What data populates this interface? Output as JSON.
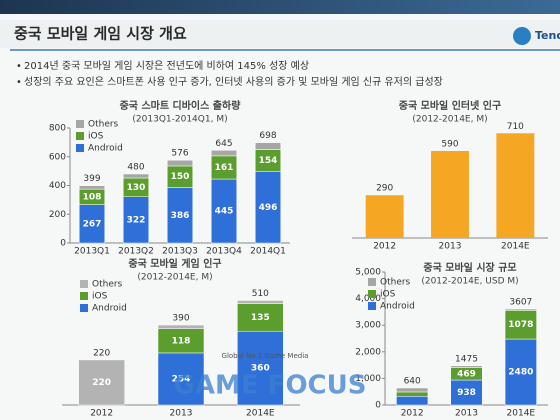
{
  "slide": {
    "title": "중국 모바일 게임 시장 개요",
    "logo": "Tencent Games",
    "bullets": [
      "2014년 중국 모바일 게임 시장은 전년도에 비하여 145% 성장 예상",
      "성장의 주요 요인은 스마트폰 사용 인구 증가, 인터넷 사용의 증가 및 모바일 게임 신규 유저의 급성장"
    ]
  },
  "watermark": {
    "tagline": "Global No.1 Game Media",
    "brand": "GAME FOCUS"
  },
  "chart_data": [
    {
      "type": "stacked-bar",
      "title": "중국 스마트 디바이스 출하량",
      "subtitle": "(2013Q1-2014Q1, M)",
      "categories": [
        "2013Q1",
        "2013Q2",
        "2013Q3",
        "2013Q4",
        "2014Q1"
      ],
      "series": [
        {
          "name": "Others",
          "color": "#a6a6a6",
          "values": [
            24,
            28,
            40,
            39,
            48
          ]
        },
        {
          "name": "iOS",
          "color": "#5b9e2e",
          "values": [
            108,
            130,
            150,
            161,
            154
          ]
        },
        {
          "name": "Android",
          "color": "#2f6fd8",
          "values": [
            267,
            322,
            386,
            445,
            496
          ]
        }
      ],
      "totals": [
        399,
        480,
        576,
        645,
        698
      ],
      "ylim": [
        0,
        800
      ],
      "yticks": [
        0,
        200,
        400,
        600,
        800
      ],
      "legend": "upper left"
    },
    {
      "type": "bar",
      "title": "중국 모바일 인터넷 인구",
      "subtitle": "(2012-2014E, M)",
      "categories": [
        "2012",
        "2013",
        "2014E"
      ],
      "values": [
        290,
        590,
        710
      ],
      "color": "#f5a623",
      "ylim": [
        0,
        800
      ]
    },
    {
      "type": "stacked-bar",
      "title": "중국 모바일 게임 인구",
      "subtitle": "(2012-2014E, M)",
      "categories": [
        "2012",
        "2013",
        "2014E"
      ],
      "series": [
        {
          "name": "Others",
          "color": "#b3b3b3",
          "values": [
            220,
            18,
            15
          ]
        },
        {
          "name": "iOS",
          "color": "#5b9e2e",
          "values": [
            null,
            118,
            135
          ]
        },
        {
          "name": "Android",
          "color": "#2f6fd8",
          "values": [
            null,
            254,
            360
          ]
        }
      ],
      "totals": [
        220,
        390,
        510
      ],
      "ylim": [
        0,
        600
      ],
      "legend": "upper left"
    },
    {
      "type": "stacked-bar",
      "title": "중국 모바일 시장 규모",
      "subtitle": "(2012-2014E, USD M)",
      "categories": [
        "2012",
        "2013",
        "2014E"
      ],
      "series": [
        {
          "name": "Others",
          "color": "#a6a6a6",
          "values": [
            150,
            68,
            49
          ]
        },
        {
          "name": "iOS",
          "color": "#5b9e2e",
          "values": [
            163,
            469,
            1078
          ]
        },
        {
          "name": "Android",
          "color": "#2f6fd8",
          "values": [
            327,
            938,
            2480
          ]
        }
      ],
      "totals": [
        640,
        1475,
        3607
      ],
      "ylim": [
        0,
        5000
      ],
      "yticks": [
        0,
        {
          "value": 1000,
          "label": "1,000"
        },
        {
          "value": 2000,
          "label": "2,000"
        },
        {
          "value": 3000,
          "label": "3,000"
        },
        {
          "value": 4000,
          "label": "4,000"
        },
        {
          "value": 5000,
          "label": "5,000"
        }
      ],
      "legend": "upper left"
    }
  ]
}
